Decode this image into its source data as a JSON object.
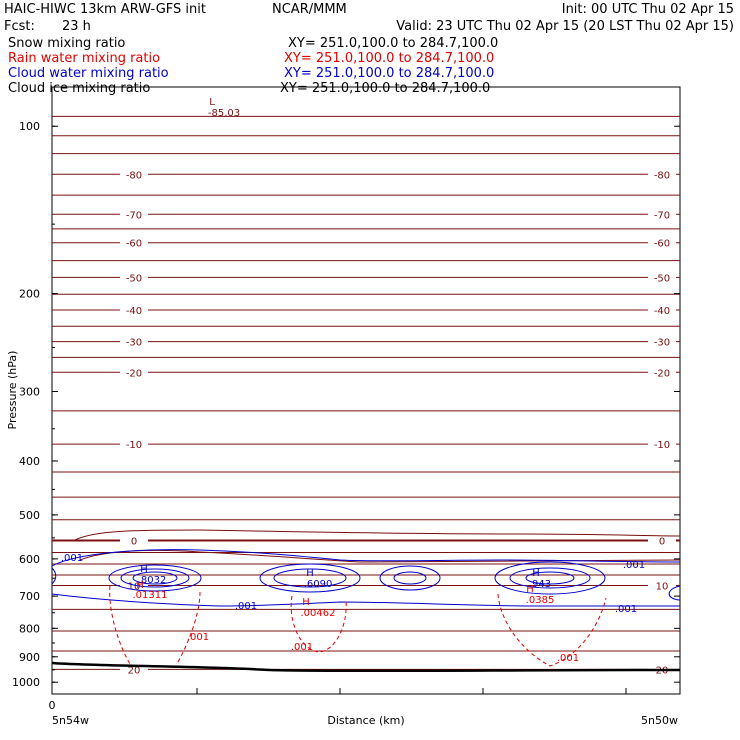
{
  "header": {
    "title": "HAIC-HIWC 13km ARW-GFS init",
    "org": "NCAR/MMM",
    "init": "Init: 00 UTC Thu 02 Apr 15",
    "fcst_label": "Fcst:",
    "fcst_value": "23 h",
    "valid": "Valid: 23 UTC Thu 02 Apr 15 (20 LST Thu 02 Apr 15)",
    "fields": [
      {
        "name": "Snow mixing ratio",
        "xy": "XY= 251.0,100.0 to 284.7,100.0",
        "color": "#000000"
      },
      {
        "name": "Rain water mixing ratio",
        "xy": "XY= 251.0,100.0 to 284.7,100.0",
        "color": "#e00000"
      },
      {
        "name": "Cloud water mixing ratio",
        "xy": "XY= 251.0,100.0 to 284.7,100.0",
        "color": "#0000cc"
      },
      {
        "name": "Cloud ice mixing ratio",
        "xy": "XY= 251.0,100.0 to 284.7,100.0",
        "color": "#000000"
      }
    ]
  },
  "chart_data": {
    "type": "contour",
    "ylabel": "Pressure (hPa)",
    "xlabel": "Distance (km)",
    "y_scale": "log",
    "ylim": [
      1050,
      85
    ],
    "y_ticks": [
      100,
      200,
      300,
      400,
      500,
      600,
      700,
      800,
      900,
      1000
    ],
    "x_tick_labels": {
      "origin": "0",
      "left": "5n54w",
      "right": "5n50w"
    },
    "colors": {
      "temperature": "#7a1010",
      "zero_isotherm": "#7a1010",
      "rain": "#e00000",
      "cloud_water": "#0000cc",
      "ground": "#000000"
    },
    "temperature_labels": [
      {
        "value": "-80",
        "p": 122
      },
      {
        "value": "-70",
        "p": 144
      },
      {
        "value": "-60",
        "p": 162
      },
      {
        "value": "-50",
        "p": 187
      },
      {
        "value": "-40",
        "p": 214
      },
      {
        "value": "-30",
        "p": 244
      },
      {
        "value": "-20",
        "p": 277
      },
      {
        "value": "-10",
        "p": 373
      },
      {
        "value": "0",
        "p": 556
      },
      {
        "value": "10",
        "p": 670
      },
      {
        "value": "20",
        "p": 948
      }
    ],
    "minimum": {
      "label": "L",
      "value": "-85.03",
      "p": 96
    },
    "maxima": [
      {
        "label": "H",
        "value": ".8032",
        "field": "cloud_water"
      },
      {
        "label": "H",
        "value": ".01311",
        "field": "rain"
      },
      {
        "label": "H",
        "value": ".6090",
        "field": "cloud_water"
      },
      {
        "label": "H",
        "value": ".00462",
        "field": "rain"
      },
      {
        "label": "H",
        "value": ".943",
        "field": "cloud_water"
      },
      {
        "label": "H",
        "value": ".0385",
        "field": "rain"
      }
    ],
    "rain_labels": [
      ".001",
      ".001",
      ".001"
    ],
    "cloud_labels": [
      ".001",
      ".001",
      ".001",
      ".001"
    ]
  }
}
